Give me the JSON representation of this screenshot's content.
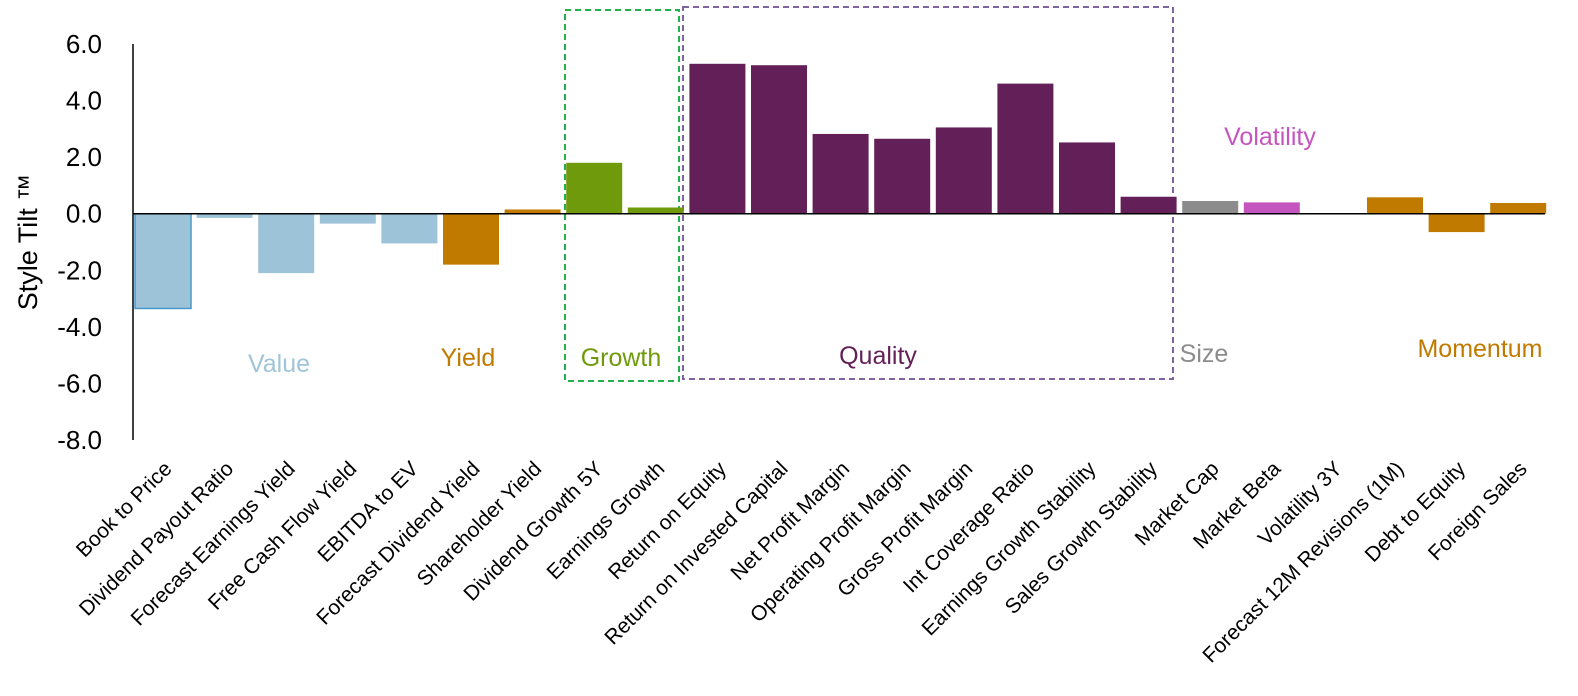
{
  "chart_data": {
    "type": "bar",
    "ylabel": "Style Tilt ™",
    "ylim": [
      -8.0,
      6.0
    ],
    "yticks": [
      "6.0",
      "4.0",
      "2.0",
      "0.0",
      "-2.0",
      "-4.0",
      "-6.0",
      "-8.0"
    ],
    "ytick_values": [
      6,
      4,
      2,
      0,
      -2,
      -4,
      -6,
      -8
    ],
    "grid": false,
    "categories": [
      "Book to Price",
      "Dividend Payout Ratio",
      "Forecast Earnings Yield",
      "Free Cash Flow Yield",
      "EBITDA to EV",
      "Forecast Dividend Yield",
      "Shareholder Yield",
      "Dividend Growth 5Y",
      "Earnings Growth",
      "Return on Equity",
      "Return on Invested Capital",
      "Net Profit Margin",
      "Operating Profit Margin",
      "Gross Profit Margin",
      "Int Coverage Ratio",
      "Earnings Growth Stability",
      "Sales Growth Stability",
      "Market Cap",
      "Market Beta",
      "Volatility 3Y",
      "Forecast 12M Revisions (1M)",
      "Debt to Equity",
      "Foreign Sales"
    ],
    "values": [
      -3.35,
      -0.15,
      -2.1,
      -0.35,
      -1.05,
      -1.8,
      0.15,
      1.8,
      0.22,
      5.3,
      5.25,
      2.82,
      2.65,
      3.05,
      4.6,
      2.52,
      0.6,
      0.45,
      0.4,
      0.0,
      0.58,
      -0.65,
      0.38
    ],
    "bar_colors": [
      "#9dc3d8",
      "#9dc3d8",
      "#9dc3d8",
      "#9dc3d8",
      "#9dc3d8",
      "#c17a00",
      "#c17a00",
      "#6f9a0c",
      "#6f9a0c",
      "#631f57",
      "#631f57",
      "#631f57",
      "#631f57",
      "#631f57",
      "#631f57",
      "#631f57",
      "#631f57",
      "#8c8c8c",
      "#c454be",
      "#c454be",
      "#c17a00",
      "#c17a00",
      "#c17a00"
    ],
    "groups": [
      {
        "name": "Value",
        "color": "#a0c4d8"
      },
      {
        "name": "Yield",
        "color": "#c17a00"
      },
      {
        "name": "Growth",
        "color": "#6f9a0c"
      },
      {
        "name": "Quality",
        "color": "#631f57"
      },
      {
        "name": "Size",
        "color": "#8c8c8c"
      },
      {
        "name": "Volatility",
        "color": "#c454be"
      },
      {
        "name": "Momentum",
        "color": "#c17a00"
      }
    ],
    "highlight_boxes": [
      {
        "group": "Growth",
        "color": "#22b14c",
        "style": "dashed"
      },
      {
        "group": "Quality",
        "color": "#8064a2",
        "style": "dashed"
      }
    ]
  }
}
